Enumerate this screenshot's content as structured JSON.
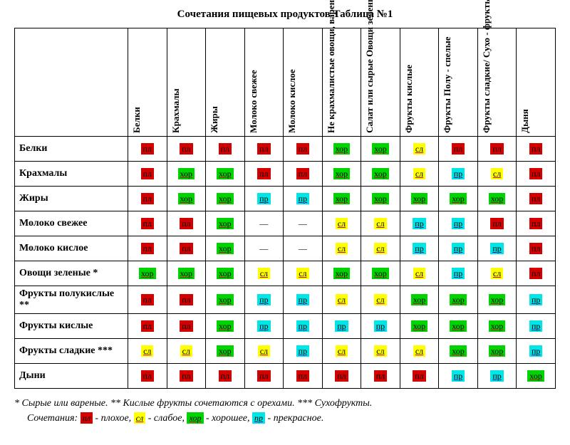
{
  "title": "Сочетания пищевых продуктов Таблица №1",
  "columns": [
    "Белки",
    "Крахмалы",
    "Жиры",
    "Молоко свежее",
    "Молоко кислое",
    "Не крахмалистые овощи, вареные",
    "Салат или сырые Овощи зеленые",
    "Фрукты кислые",
    "Фрукты Полу - спелые",
    "Фрукты сладкие/ Сухо - фрукты",
    "Дыня"
  ],
  "rows": [
    {
      "label": "Белки",
      "cells": [
        "пл",
        "пл",
        "пл",
        "пл",
        "пл",
        "хор",
        "хор",
        "сл",
        "пл",
        "пл",
        "пл"
      ]
    },
    {
      "label": "Крахмалы",
      "cells": [
        "пл",
        "хор",
        "хор",
        "пл",
        "пл",
        "хор",
        "хор",
        "сл",
        "пр",
        "сл",
        "пл"
      ]
    },
    {
      "label": "Жиры",
      "cells": [
        "пл",
        "хор",
        "хор",
        "пр",
        "пр",
        "хор",
        "хор",
        "хор",
        "хор",
        "хор",
        "пл"
      ]
    },
    {
      "label": "Молоко свежее",
      "cells": [
        "пл",
        "пл",
        "хор",
        "—",
        "—",
        "сл",
        "сл",
        "пр",
        "пр",
        "пл",
        "пл"
      ]
    },
    {
      "label": "Молоко кислое",
      "cells": [
        "пл",
        "пл",
        "хор",
        "—",
        "—",
        "сл",
        "сл",
        "пр",
        "пр",
        "пр",
        "пл"
      ]
    },
    {
      "label": "Овощи зеленые *",
      "cells": [
        "хор",
        "хор",
        "хор",
        "сл",
        "сл",
        "хор",
        "хор",
        "сл",
        "пр",
        "сл",
        "пл"
      ]
    },
    {
      "label": "Фрукты полукислые **",
      "cells": [
        "пл",
        "пл",
        "хор",
        "пр",
        "пр",
        "сл",
        "сл",
        "хор",
        "хор",
        "хор",
        "пр"
      ]
    },
    {
      "label": "Фрукты кислые",
      "cells": [
        "пл",
        "пл",
        "хор",
        "пр",
        "пр",
        "пр",
        "пр",
        "хор",
        "хор",
        "хор",
        "пр"
      ]
    },
    {
      "label": "Фрукты сладкие ***",
      "cells": [
        "сл",
        "сл",
        "хор",
        "сл",
        "пр",
        "сл",
        "сл",
        "сл",
        "хор",
        "хор",
        "пр"
      ]
    },
    {
      "label": "Дыни",
      "cells": [
        "пл",
        "пл",
        "пл",
        "пл",
        "пл",
        "пл",
        "пл",
        "пл",
        "пр",
        "пр",
        "хор"
      ]
    }
  ],
  "codes": {
    "пл": {
      "class": "c-pl"
    },
    "сл": {
      "class": "c-sl"
    },
    "хор": {
      "class": "c-hor"
    },
    "пр": {
      "class": "c-pr"
    },
    "—": {
      "class": "c-none"
    }
  },
  "legend": {
    "line1": "* Сырые или вареные. ** Кислые фрукты сочетаются с орехами. *** Сухофрукты.",
    "line2_prefix": "Сочетания: ",
    "items": [
      {
        "code": "пл",
        "text": " - плохое, "
      },
      {
        "code": "сл",
        "text": " - слабое, "
      },
      {
        "code": "хор",
        "text": " - хорошее, "
      },
      {
        "code": "пр",
        "text": " - прекрасное."
      }
    ]
  }
}
